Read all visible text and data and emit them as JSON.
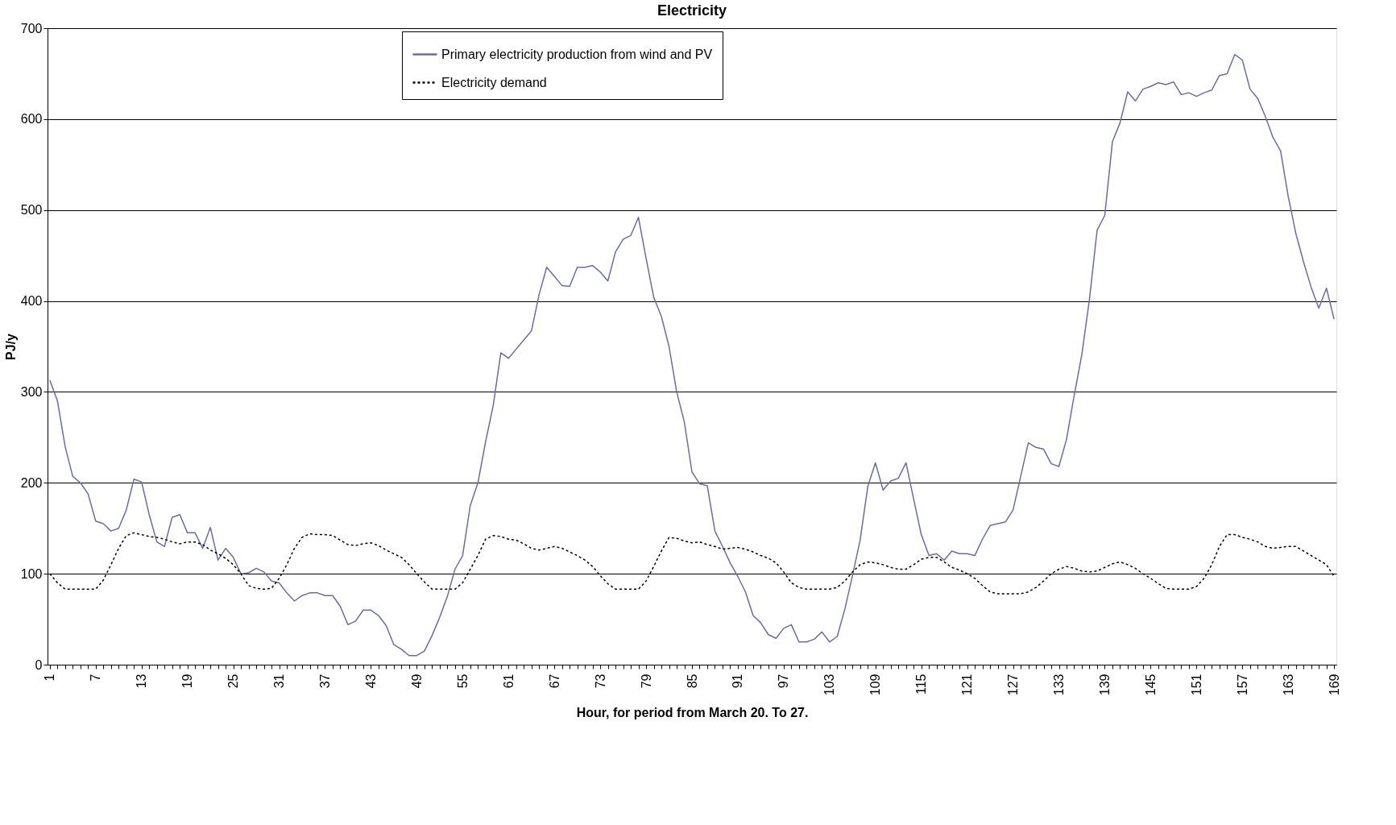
{
  "chart_data": {
    "type": "line",
    "title": "Electricity",
    "xlabel": "Hour, for period from March 20. To 27.",
    "ylabel": "PJ/y",
    "categories": [
      "1",
      null,
      null,
      null,
      null,
      null,
      "7",
      null,
      null,
      null,
      null,
      null,
      "13",
      null,
      null,
      null,
      null,
      null,
      "19",
      null,
      null,
      null,
      null,
      null,
      "25",
      null,
      null,
      null,
      null,
      null,
      "31",
      null,
      null,
      null,
      null,
      null,
      "37",
      null,
      null,
      null,
      null,
      null,
      "43",
      null,
      null,
      null,
      null,
      null,
      "49",
      null,
      null,
      null,
      null,
      null,
      "55",
      null,
      null,
      null,
      null,
      null,
      "61",
      null,
      null,
      null,
      null,
      null,
      "67",
      null,
      null,
      null,
      null,
      null,
      "73",
      null,
      null,
      null,
      null,
      null,
      "79",
      null,
      null,
      null,
      null,
      null,
      "85",
      null,
      null,
      null,
      null,
      null,
      "91",
      null,
      null,
      null,
      null,
      null,
      "97",
      null,
      null,
      null,
      null,
      null,
      "103",
      null,
      null,
      null,
      null,
      null,
      "109",
      null,
      null,
      null,
      null,
      null,
      "115",
      null,
      null,
      null,
      null,
      null,
      "121",
      null,
      null,
      null,
      null,
      null,
      "127",
      null,
      null,
      null,
      null,
      null,
      "133",
      null,
      null,
      null,
      null,
      null,
      "139",
      null,
      null,
      null,
      null,
      null,
      "145",
      null,
      null,
      null,
      null,
      null,
      "151",
      null,
      null,
      null,
      null,
      null,
      "157",
      null,
      null,
      null,
      null,
      null,
      "163",
      null,
      null,
      null,
      null,
      null,
      "169"
    ],
    "series": [
      {
        "name": "Primary electricity production from wind and PV",
        "color": "#6b6ba8",
        "line_style": "solid",
        "values": [
          313,
          290,
          240,
          207,
          200,
          188,
          158,
          155,
          147,
          150,
          170,
          204,
          201,
          165,
          135,
          130,
          162,
          165,
          145,
          145,
          128,
          151,
          115,
          128,
          118,
          100,
          101,
          106,
          102,
          92,
          90,
          79,
          70,
          76,
          79,
          79,
          76,
          76,
          64,
          44,
          48,
          60,
          60,
          54,
          43,
          22,
          17,
          10,
          10,
          15,
          32,
          52,
          75,
          105,
          120,
          175,
          200,
          245,
          285,
          343,
          337,
          347,
          357,
          367,
          407,
          437,
          427,
          417,
          416,
          437,
          437,
          439,
          432,
          422,
          454,
          468,
          472,
          492,
          447,
          404,
          383,
          350,
          300,
          267,
          212,
          199,
          197,
          147,
          130,
          112,
          97,
          80,
          54,
          46,
          33,
          29,
          40,
          44,
          25,
          25,
          28,
          36,
          25,
          31,
          61,
          98,
          137,
          196,
          222,
          192,
          202,
          205,
          222,
          182,
          143,
          120,
          122,
          115,
          125,
          122,
          122,
          120,
          138,
          153,
          155,
          157,
          170,
          207,
          244,
          239,
          237,
          221,
          218,
          248,
          296,
          341,
          402,
          478,
          494,
          575,
          596,
          630,
          620,
          633,
          636,
          640,
          638,
          641,
          627,
          629,
          625,
          629,
          632,
          648,
          650,
          671,
          665,
          633,
          623,
          603,
          580,
          565,
          515,
          474,
          443,
          415,
          392,
          414,
          380
        ]
      },
      {
        "name": "Electricity demand",
        "color": "#000000",
        "line_style": "dotted",
        "values": [
          100,
          90,
          83,
          83,
          83,
          83,
          83,
          93,
          110,
          128,
          142,
          145,
          143,
          141,
          140,
          138,
          135,
          133,
          135,
          135,
          132,
          126,
          122,
          117,
          110,
          100,
          87,
          84,
          83,
          84,
          95,
          110,
          128,
          140,
          144,
          143,
          143,
          142,
          137,
          132,
          131,
          133,
          134,
          131,
          126,
          122,
          118,
          110,
          100,
          91,
          83,
          83,
          83,
          83,
          90,
          105,
          120,
          138,
          142,
          141,
          138,
          137,
          133,
          128,
          126,
          128,
          130,
          128,
          124,
          120,
          115,
          108,
          98,
          89,
          83,
          83,
          83,
          83,
          92,
          108,
          125,
          140,
          139,
          136,
          134,
          135,
          132,
          130,
          127,
          128,
          129,
          127,
          124,
          120,
          117,
          112,
          102,
          90,
          85,
          83,
          83,
          83,
          83,
          85,
          92,
          102,
          110,
          113,
          112,
          110,
          107,
          105,
          105,
          110,
          116,
          118,
          118,
          113,
          107,
          104,
          100,
          95,
          87,
          80,
          78,
          78,
          78,
          78,
          80,
          85,
          92,
          100,
          105,
          108,
          106,
          103,
          102,
          103,
          107,
          111,
          113,
          110,
          106,
          100,
          95,
          89,
          84,
          83,
          83,
          83,
          86,
          95,
          110,
          130,
          143,
          143,
          140,
          138,
          135,
          130,
          128,
          129,
          130,
          130,
          125,
          120,
          115,
          110,
          97
        ]
      }
    ],
    "ylim": [
      0,
      700
    ],
    "yticks": [
      0,
      100,
      200,
      300,
      400,
      500,
      600,
      700
    ],
    "grid": "y",
    "legend": "top"
  }
}
